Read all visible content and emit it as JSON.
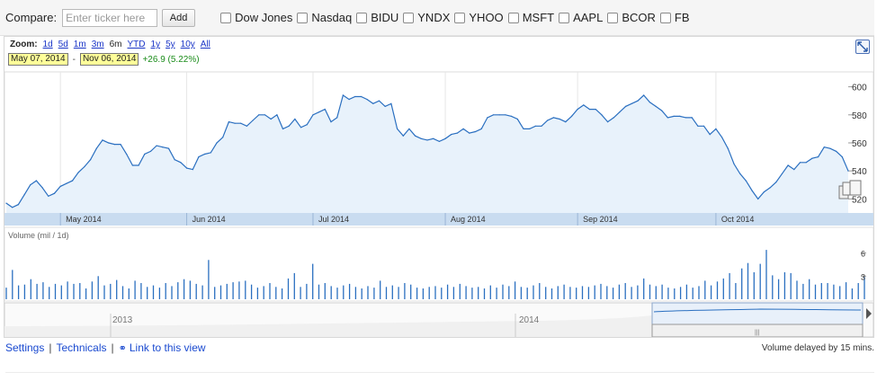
{
  "compare": {
    "label": "Compare:",
    "placeholder": "Enter ticker here",
    "add_label": "Add",
    "checkboxes": [
      "Dow Jones",
      "Nasdaq",
      "BIDU",
      "YNDX",
      "YHOO",
      "MSFT",
      "AAPL",
      "BCOR",
      "FB"
    ]
  },
  "zoom": {
    "label": "Zoom:",
    "options": [
      "1d",
      "5d",
      "1m",
      "3m",
      "6m",
      "YTD",
      "1y",
      "5y",
      "10y",
      "All"
    ],
    "selected": "6m"
  },
  "range": {
    "start": "May 07, 2014",
    "separator": "-",
    "end": "Nov 06, 2014",
    "change": "+26.9 (5.22%)"
  },
  "colors": {
    "line": "#2a6fc0",
    "fill": "#e8f2fb",
    "volume_bar": "#2a6fc0",
    "axis_band": "#c9dcf0",
    "change_positive": "#1a8c1a"
  },
  "volume_label": "Volume (mil / 1d)",
  "overview": {
    "labels": [
      "2013",
      "2014"
    ]
  },
  "footer": {
    "settings": "Settings",
    "technicals": "Technicals",
    "link": "Link to this view",
    "delay": "Volume delayed by 15 mins."
  },
  "chart_data": [
    {
      "type": "line",
      "ylim": [
        510,
        610
      ],
      "y_ticks": [
        600,
        580,
        560,
        540,
        520
      ],
      "x_ticks": [
        "May 2014",
        "Jun 2014",
        "Jul 2014",
        "Aug 2014",
        "Sep 2014",
        "Oct 2014"
      ],
      "series": [
        {
          "values": [
            517,
            514,
            516,
            523,
            530,
            533,
            528,
            522,
            524,
            529,
            531,
            533,
            539,
            543,
            548,
            556,
            562,
            560,
            559,
            559,
            552,
            544,
            544,
            552,
            554,
            558,
            557,
            556,
            548,
            546,
            542,
            541,
            550,
            552,
            553,
            560,
            564,
            575,
            574,
            574,
            572,
            576,
            580,
            580,
            577,
            580,
            570,
            572,
            577,
            571,
            573,
            580,
            582,
            584,
            575,
            578,
            594,
            591,
            593,
            593,
            591,
            588,
            590,
            586,
            588,
            570,
            565,
            570,
            565,
            563,
            562,
            563,
            561,
            563,
            566,
            567,
            570,
            567,
            568,
            570,
            578,
            580,
            580,
            580,
            579,
            577,
            570,
            570,
            572,
            572,
            576,
            578,
            577,
            575,
            579,
            584,
            587,
            584,
            584,
            580,
            575,
            578,
            582,
            586,
            588,
            590,
            594,
            589,
            586,
            583,
            578,
            579,
            579,
            578,
            578,
            572,
            572,
            566,
            570,
            564,
            556,
            545,
            538,
            533,
            526,
            520,
            525,
            528,
            532,
            538,
            544,
            541,
            546,
            546,
            549,
            550,
            557,
            556,
            554,
            550,
            540
          ]
        }
      ]
    },
    {
      "type": "bar",
      "ylim": [
        0,
        7
      ],
      "y_ticks": [
        6,
        3
      ],
      "series": [
        {
          "values": [
            1.5,
            3.8,
            1.8,
            1.9,
            2.6,
            2.0,
            2.2,
            1.6,
            2.0,
            1.8,
            2.3,
            2.0,
            2.1,
            1.4,
            2.3,
            3.0,
            1.8,
            2.0,
            2.5,
            1.7,
            1.4,
            2.4,
            2.1,
            1.6,
            1.8,
            1.5,
            2.1,
            1.7,
            2.2,
            2.6,
            2.4,
            2.0,
            1.8,
            5.1,
            1.6,
            1.8,
            2.0,
            2.2,
            2.3,
            2.4,
            1.9,
            1.5,
            1.7,
            2.1,
            1.6,
            1.4,
            2.7,
            3.4,
            1.6,
            2.0,
            4.6,
            1.9,
            2.1,
            1.7,
            1.5,
            1.8,
            2.0,
            1.6,
            1.4,
            1.7,
            1.5,
            2.4,
            1.6,
            1.8,
            1.6,
            2.1,
            1.9,
            1.5,
            1.4,
            1.6,
            1.7,
            1.5,
            1.9,
            1.6,
            2.0,
            1.7,
            1.5,
            1.6,
            1.4,
            1.8,
            1.5,
            1.9,
            1.7,
            2.3,
            1.6,
            1.5,
            1.8,
            2.1,
            1.6,
            1.4,
            1.7,
            1.9,
            1.6,
            1.5,
            1.7,
            1.6,
            1.8,
            2.0,
            1.7,
            1.5,
            1.9,
            2.1,
            1.6,
            1.8,
            2.7,
            1.9,
            1.7,
            1.9,
            1.5,
            1.4,
            1.6,
            1.9,
            1.5,
            1.7,
            2.4,
            1.8,
            2.3,
            2.7,
            3.4,
            2.1,
            4.0,
            4.7,
            3.5,
            4.6,
            6.4,
            3.1,
            2.6,
            3.5,
            3.4,
            2.4,
            2.0,
            2.6,
            1.9,
            2.1,
            2.1,
            1.9,
            1.7,
            2.2,
            1.4,
            2.1,
            2.9
          ]
        }
      ]
    }
  ]
}
